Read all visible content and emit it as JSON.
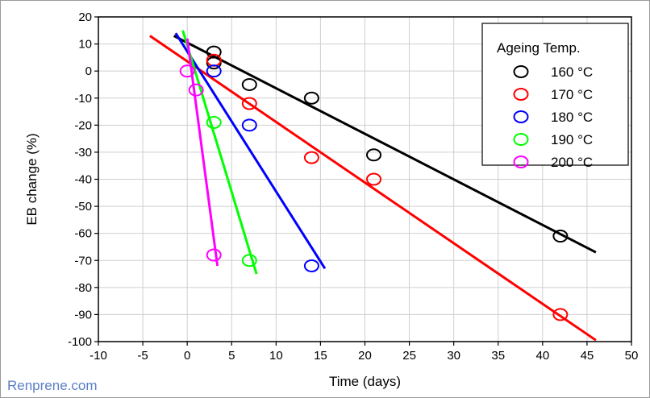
{
  "chart_data": {
    "type": "scatter",
    "title": "",
    "xlabel": "Time (days)",
    "ylabel": "EB change (%)",
    "xlim": [
      -10,
      50
    ],
    "ylim": [
      -100,
      20
    ],
    "xticks": [
      "-10",
      "-5",
      "0",
      "5",
      "10",
      "15",
      "20",
      "25",
      "30",
      "35",
      "40",
      "45",
      "50"
    ],
    "yticks": [
      "20",
      "10",
      "0",
      "-10",
      "-20",
      "-30",
      "-40",
      "-50",
      "-60",
      "-70",
      "-80",
      "-90",
      "-100"
    ],
    "grid": true,
    "legend": {
      "title": "Ageing Temp.",
      "placement": "top-right"
    },
    "series": [
      {
        "name": "160 °C",
        "color": "#000000",
        "points": [
          [
            3,
            7
          ],
          [
            3,
            3
          ],
          [
            7,
            -5
          ],
          [
            14,
            -10
          ],
          [
            21,
            -31
          ],
          [
            42,
            -61
          ]
        ],
        "fit_line": [
          [
            -1.5,
            13
          ],
          [
            46,
            -67
          ]
        ]
      },
      {
        "name": "170 °C",
        "color": "#ff0000",
        "points": [
          [
            3,
            4
          ],
          [
            7,
            -12
          ],
          [
            14,
            -32
          ],
          [
            21,
            -40
          ],
          [
            42,
            -90
          ]
        ],
        "fit_line": [
          [
            -4.2,
            13
          ],
          [
            46,
            -99.5
          ]
        ]
      },
      {
        "name": "180 °C",
        "color": "#0000ff",
        "points": [
          [
            3,
            0
          ],
          [
            7,
            -20
          ],
          [
            14,
            -72
          ]
        ],
        "fit_line": [
          [
            -1.3,
            14
          ],
          [
            15.5,
            -73
          ]
        ]
      },
      {
        "name": "190 °C",
        "color": "#00ff00",
        "points": [
          [
            3,
            -19
          ],
          [
            7,
            -70
          ]
        ],
        "fit_line": [
          [
            -0.5,
            15
          ],
          [
            7.8,
            -75
          ]
        ]
      },
      {
        "name": "200 °C",
        "color": "#ff00ff",
        "points": [
          [
            0,
            0
          ],
          [
            1,
            -7
          ],
          [
            3,
            -68
          ]
        ],
        "fit_line": [
          [
            0,
            12
          ],
          [
            3.4,
            -72
          ]
        ]
      }
    ]
  },
  "watermark": "Renprene.com"
}
